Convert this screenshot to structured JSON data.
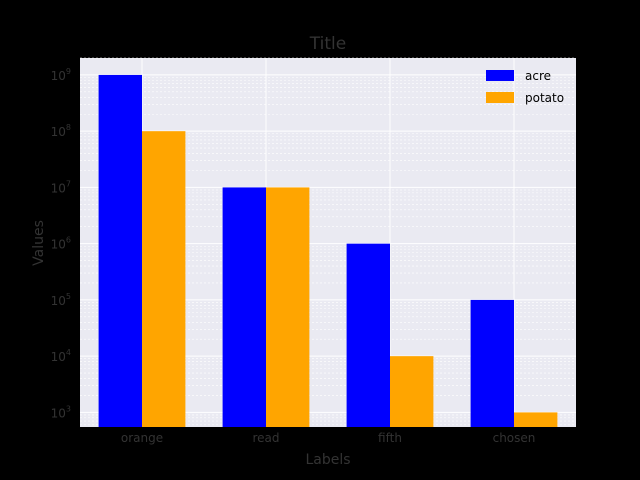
{
  "chart_data": {
    "type": "bar",
    "title": "Title",
    "xlabel": "Labels",
    "ylabel": "Values",
    "yscale": "log",
    "ylim": [
      550,
      2000000000
    ],
    "grid": true,
    "legend_position": "top-right",
    "categories": [
      "orange",
      "read",
      "fifth",
      "chosen"
    ],
    "y_ticks": [
      {
        "value": 1000,
        "base": "10",
        "exp": "3"
      },
      {
        "value": 10000,
        "base": "10",
        "exp": "4"
      },
      {
        "value": 100000,
        "base": "10",
        "exp": "5"
      },
      {
        "value": 1000000,
        "base": "10",
        "exp": "6"
      },
      {
        "value": 10000000,
        "base": "10",
        "exp": "7"
      },
      {
        "value": 100000000,
        "base": "10",
        "exp": "8"
      },
      {
        "value": 1000000000,
        "base": "10",
        "exp": "9"
      }
    ],
    "series": [
      {
        "name": "acre",
        "color": "#0000ff",
        "values": [
          1000000000,
          10000000,
          1000000,
          100000
        ]
      },
      {
        "name": "potato",
        "color": "#ffa500",
        "values": [
          100000000,
          10000000,
          10000,
          1000
        ]
      }
    ]
  },
  "colors": {
    "page_background": "#000000",
    "plot_background": "#eaeaf2",
    "grid": "#ffffff",
    "text": "#333333"
  }
}
